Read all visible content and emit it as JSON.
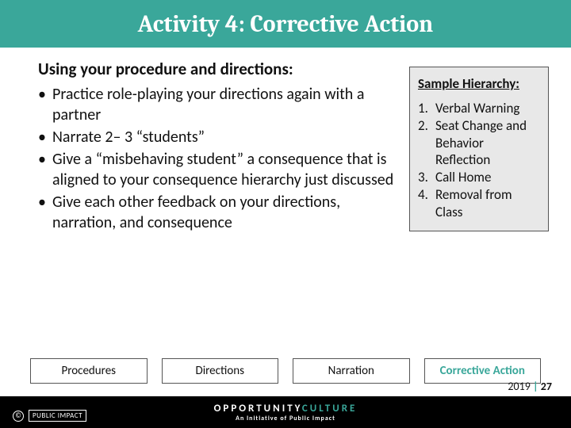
{
  "colors": {
    "accent": "#3aa79a",
    "footer_bg": "#000000",
    "box_bg": "#e8e8e8",
    "box_border": "#555555",
    "text": "#111111",
    "white": "#ffffff"
  },
  "title": "Activity 4: Corrective Action",
  "heading": "Using your procedure and directions:",
  "bullets": [
    "Practice role-playing your directions again with a partner",
    "Narrate 2– 3 “students”",
    "Give a “misbehaving student” a consequence that is aligned to your consequence hierarchy just discussed",
    "Give each other feedback on your directions, narration, and consequence"
  ],
  "hierarchy": {
    "title": "Sample Hierarchy:",
    "items": [
      "Verbal Warning",
      "Seat Change and Behavior Reflection",
      "Call Home",
      "Removal from Class"
    ]
  },
  "tabs": {
    "items": [
      "Procedures",
      "Directions",
      "Narration",
      "Corrective Action"
    ],
    "active_index": 3
  },
  "footer": {
    "brand_left": "OPPORTUNITY",
    "brand_right": "CULTURE",
    "subline": "An Initiative of Public Impact",
    "left_badge": "PUBLIC IMPACT",
    "copyright": "©"
  },
  "page": {
    "year": "2019",
    "separator": "|",
    "number": "27"
  }
}
